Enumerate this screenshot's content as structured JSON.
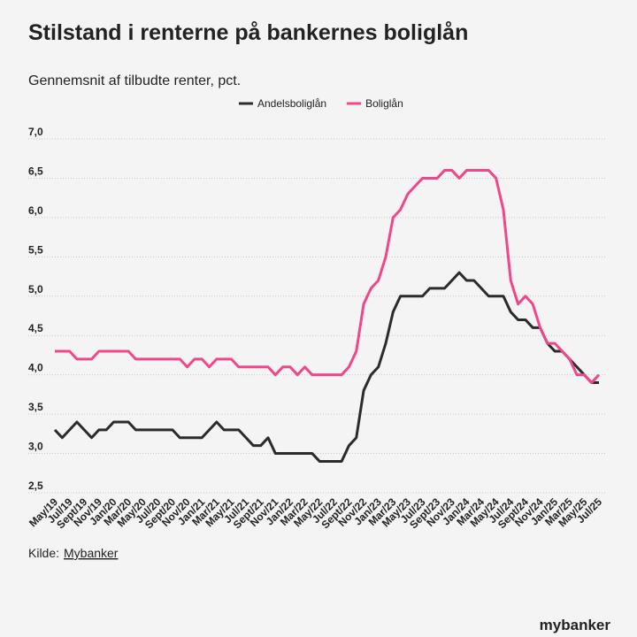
{
  "chart_data": {
    "type": "line",
    "title": "Stilstand i renterne på bankernes boliglån",
    "subtitle": "Gennemsnit af tilbudte renter, pct.",
    "source_prefix": "Kilde:",
    "source_link": "Mybanker",
    "logo": "mybanker",
    "categories": [
      "May/19",
      null,
      "Jul/19",
      null,
      "Sept/19",
      null,
      "Nov/19",
      null,
      "Jan/20",
      null,
      "Mar/20",
      null,
      "May/20",
      null,
      "Jul/20",
      null,
      "Sept/20",
      null,
      "Nov/20",
      null,
      "Jan/21",
      null,
      "Mar/21",
      null,
      "May/21",
      null,
      "Jul/21",
      null,
      "Sept/21",
      null,
      "Nov/21",
      null,
      "Jan/22",
      null,
      "Mar/22",
      null,
      "May/22",
      null,
      "Jul/22",
      null,
      "Sept/22",
      null,
      "Nov/22",
      null,
      "Jan/23",
      null,
      "Mar/23",
      null,
      "May/23",
      null,
      "Jul/23",
      null,
      "Sept/23",
      null,
      "Nov/23",
      null,
      "Jan/24",
      null,
      "Mar/24",
      null,
      "May/24",
      null,
      "Jul/24",
      null,
      "Sept/24",
      null,
      "Nov/24",
      null,
      "Jan/25",
      null,
      "Mar/25",
      null,
      "May/25",
      null,
      "Jul/25"
    ],
    "series": [
      {
        "name": "Andelsboliglån",
        "color": "#2b2b2b",
        "values": [
          3.3,
          3.2,
          3.3,
          3.4,
          3.3,
          3.2,
          3.3,
          3.3,
          3.4,
          3.4,
          3.4,
          3.3,
          3.3,
          3.3,
          3.3,
          3.3,
          3.3,
          3.2,
          3.2,
          3.2,
          3.2,
          3.3,
          3.4,
          3.3,
          3.3,
          3.3,
          3.2,
          3.1,
          3.1,
          3.2,
          3.0,
          3.0,
          3.0,
          3.0,
          3.0,
          3.0,
          2.9,
          2.9,
          2.9,
          2.9,
          3.1,
          3.2,
          3.8,
          4.0,
          4.1,
          4.4,
          4.8,
          5.0,
          5.0,
          5.0,
          5.0,
          5.1,
          5.1,
          5.1,
          5.2,
          5.3,
          5.2,
          5.2,
          5.1,
          5.0,
          5.0,
          5.0,
          4.8,
          4.7,
          4.7,
          4.6,
          4.6,
          4.4,
          4.3,
          4.3,
          4.2,
          4.1,
          4.0,
          3.9,
          3.9
        ]
      },
      {
        "name": "Boliglån",
        "color": "#f0468a",
        "values": [
          4.3,
          4.3,
          4.3,
          4.2,
          4.2,
          4.2,
          4.3,
          4.3,
          4.3,
          4.3,
          4.3,
          4.2,
          4.2,
          4.2,
          4.2,
          4.2,
          4.2,
          4.2,
          4.1,
          4.2,
          4.2,
          4.1,
          4.2,
          4.2,
          4.2,
          4.1,
          4.1,
          4.1,
          4.1,
          4.1,
          4.0,
          4.1,
          4.1,
          4.0,
          4.1,
          4.0,
          4.0,
          4.0,
          4.0,
          4.0,
          4.1,
          4.3,
          4.9,
          5.1,
          5.2,
          5.5,
          6.0,
          6.1,
          6.3,
          6.4,
          6.5,
          6.5,
          6.5,
          6.6,
          6.6,
          6.5,
          6.6,
          6.6,
          6.6,
          6.6,
          6.5,
          6.1,
          5.2,
          4.9,
          5.0,
          4.9,
          4.6,
          4.4,
          4.4,
          4.3,
          4.2,
          4.0,
          4.0,
          3.9,
          4.0
        ]
      }
    ],
    "ylim": [
      2.5,
      7.0
    ],
    "yticks": [
      {
        "value": 2.5,
        "label": "2,5"
      },
      {
        "value": 3.0,
        "label": "3,0"
      },
      {
        "value": 3.5,
        "label": "3,5"
      },
      {
        "value": 4.0,
        "label": "4,0"
      },
      {
        "value": 4.5,
        "label": "4,5"
      },
      {
        "value": 5.0,
        "label": "5,0"
      },
      {
        "value": 5.5,
        "label": "5,5"
      },
      {
        "value": 6.0,
        "label": "6,0"
      },
      {
        "value": 6.5,
        "label": "6,5"
      },
      {
        "value": 7.0,
        "label": "7,0"
      }
    ],
    "grid": true
  }
}
